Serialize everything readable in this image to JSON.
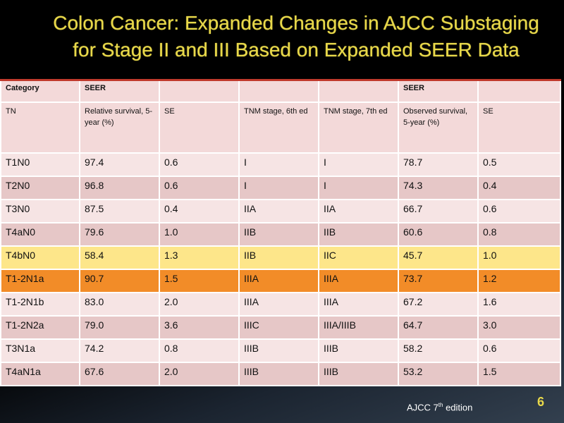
{
  "title": {
    "line1": "Colon Cancer: Expanded Changes in AJCC Substaging",
    "line2": "for Stage II and III Based on Expanded SEER Data"
  },
  "table": {
    "header_row1": [
      "Category",
      "SEER",
      "",
      "",
      "",
      "SEER",
      ""
    ],
    "header_row2": [
      "TN",
      "Relative survival, 5-year (%)",
      "SE",
      "TNM stage, 6th ed",
      "TNM stage, 7th ed",
      "Observed survival, 5-year (%)",
      "SE"
    ],
    "rows": [
      [
        "T1N0",
        "97.4",
        "0.6",
        "I",
        "I",
        "78.7",
        "0.5"
      ],
      [
        "T2N0",
        "96.8",
        "0.6",
        "I",
        "I",
        "74.3",
        "0.4"
      ],
      [
        "T3N0",
        "87.5",
        "0.4",
        "IIA",
        "IIA",
        "66.7",
        "0.6"
      ],
      [
        "T4aN0",
        "79.6",
        "1.0",
        "IIB",
        "IIB",
        "60.6",
        "0.8"
      ],
      [
        "T4bN0",
        "58.4",
        "1.3",
        "IIB",
        "IIC",
        "45.7",
        "1.0"
      ],
      [
        "T1-2N1a",
        "90.7",
        "1.5",
        "IIIA",
        "IIIA",
        "73.7",
        "1.2"
      ],
      [
        "T1-2N1b",
        "83.0",
        "2.0",
        "IIIA",
        "IIIA",
        "67.2",
        "1.6"
      ],
      [
        "T1-2N2a",
        "79.0",
        "3.6",
        "IIIC",
        "IIIA/IIIB",
        "64.7",
        "3.0"
      ],
      [
        "T3N1a",
        "74.2",
        "0.8",
        "IIIB",
        "IIIB",
        "58.2",
        "0.6"
      ],
      [
        "T4aN1a",
        "67.6",
        "2.0",
        "IIIB",
        "IIIB",
        "53.2",
        "1.5"
      ]
    ],
    "row_styles": [
      "row-light",
      "row-dark",
      "row-light",
      "row-dark",
      "hl-yellow",
      "hl-orange",
      "row-light",
      "row-dark",
      "row-light",
      "row-dark"
    ],
    "highlight_colors": {
      "yellow": "#fde68a",
      "orange": "#f28c28"
    }
  },
  "footer": {
    "edition_prefix": "AJCC 7",
    "edition_sup": "th",
    "edition_suffix": " edition",
    "page_number": "6"
  }
}
